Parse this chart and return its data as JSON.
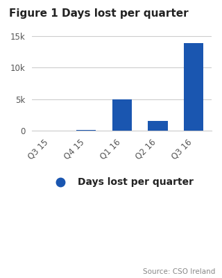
{
  "title": "Figure 1 Days lost per quarter",
  "categories": [
    "Q3 15",
    "Q4 15",
    "Q1 16",
    "Q2 16",
    "Q3 16"
  ],
  "values": [
    0,
    100,
    5000,
    1500,
    13900
  ],
  "bar_color": "#1a56b0",
  "ylim": [
    0,
    16000
  ],
  "yticks": [
    0,
    5000,
    10000,
    15000
  ],
  "ytick_labels": [
    "0",
    "5k",
    "10k",
    "15k"
  ],
  "legend_label": "Days lost per quarter",
  "source_text": "Source: CSO Ireland",
  "background_color": "#ffffff",
  "grid_color": "#cccccc",
  "title_fontsize": 11,
  "tick_fontsize": 8.5,
  "legend_fontsize": 10,
  "source_fontsize": 7.5
}
